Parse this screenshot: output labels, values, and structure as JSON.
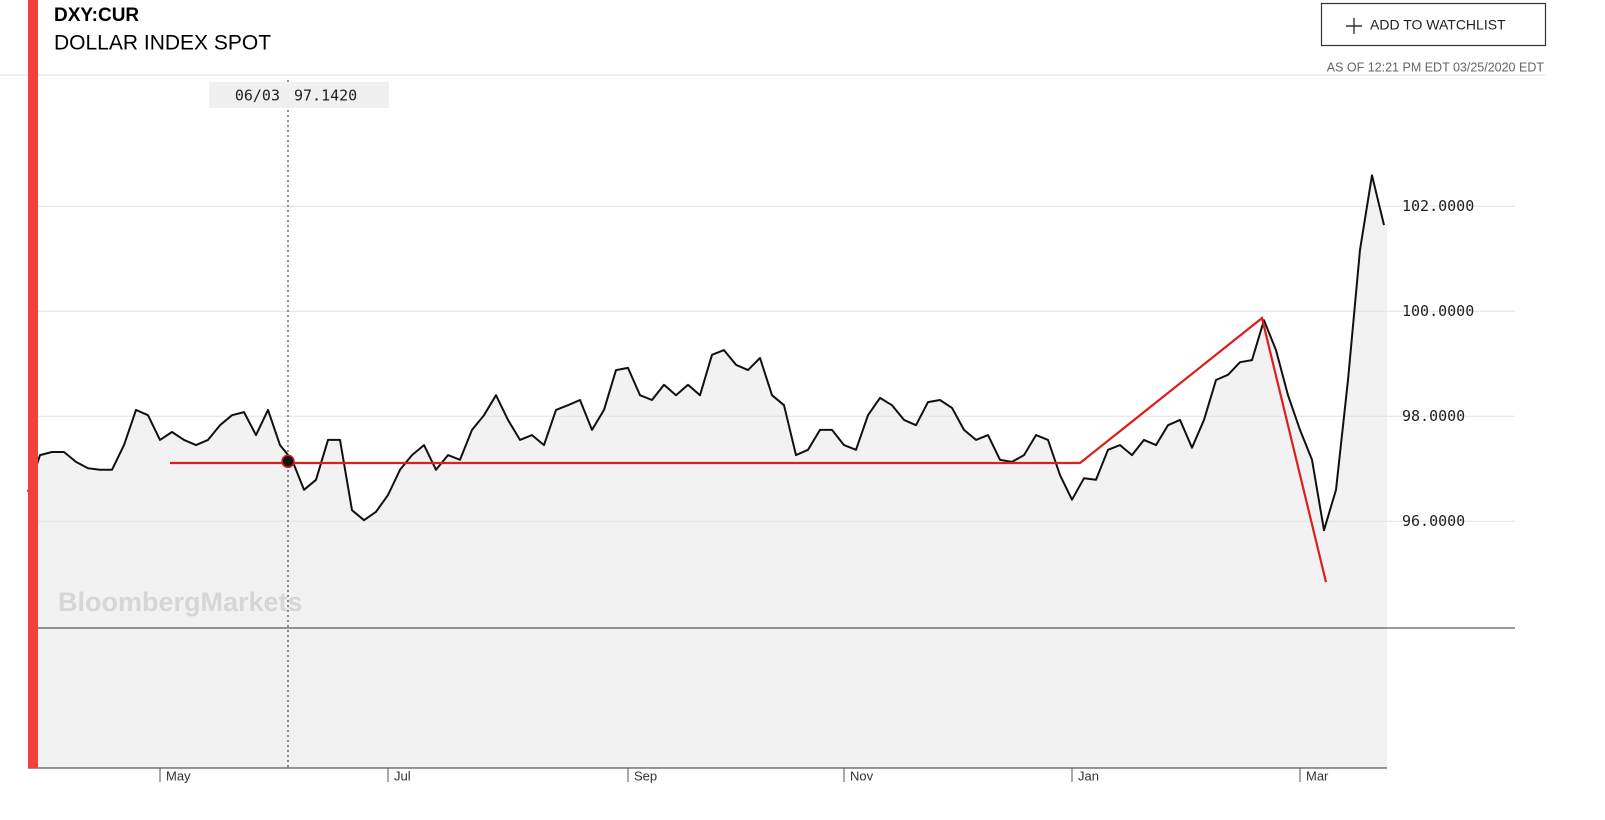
{
  "header": {
    "ticker": "DXY:CUR",
    "name": "DOLLAR INDEX SPOT",
    "button": "ADD TO WATCHLIST",
    "as_of": "AS OF 12:21 PM EDT 03/25/2020 EDT"
  },
  "chart_data": {
    "type": "line",
    "watermark": "BloombergMarkets",
    "color": "#111111",
    "area_color": "#f2f2f2",
    "categories": [
      null,
      null,
      null,
      null,
      null,
      null,
      null,
      null,
      null,
      null,
      null,
      "May",
      null,
      null,
      null,
      null,
      null,
      null,
      null,
      null,
      null,
      null,
      null,
      null,
      null,
      null,
      null,
      null,
      null,
      null,
      "Jul",
      null,
      null,
      null,
      null,
      null,
      null,
      null,
      null,
      null,
      null,
      null,
      null,
      null,
      null,
      null,
      null,
      null,
      null,
      null,
      "Sep",
      null,
      null,
      null,
      null,
      null,
      null,
      null,
      null,
      null,
      null,
      null,
      null,
      null,
      null,
      null,
      null,
      null,
      "Nov",
      null,
      null,
      null,
      null,
      null,
      null,
      null,
      null,
      null,
      null,
      null,
      null,
      null,
      null,
      null,
      null,
      null,
      null,
      "Jan",
      null,
      null,
      null,
      null,
      null,
      null,
      null,
      null,
      null,
      null,
      null,
      null,
      null,
      null,
      null,
      null,
      null,
      null,
      "Mar",
      null,
      null,
      null,
      null,
      null,
      null,
      null
    ],
    "values": [
      96.56,
      97.26,
      97.32,
      97.32,
      97.13,
      97.01,
      96.98,
      96.98,
      97.45,
      98.12,
      98.02,
      97.55,
      97.7,
      97.55,
      97.45,
      97.55,
      97.83,
      98.02,
      98.08,
      97.64,
      98.12,
      97.45,
      97.17,
      96.6,
      96.79,
      97.55,
      97.55,
      96.21,
      96.02,
      96.18,
      96.5,
      96.98,
      97.26,
      97.45,
      96.98,
      97.26,
      97.17,
      97.74,
      98.02,
      98.4,
      97.93,
      97.55,
      97.64,
      97.45,
      98.12,
      98.21,
      98.31,
      97.74,
      98.12,
      98.88,
      98.92,
      98.4,
      98.31,
      98.6,
      98.4,
      98.6,
      98.4,
      99.17,
      99.26,
      98.98,
      98.88,
      99.11,
      98.4,
      98.21,
      97.26,
      97.36,
      97.74,
      97.74,
      97.45,
      97.36,
      98.02,
      98.35,
      98.21,
      97.93,
      97.83,
      98.27,
      98.31,
      98.16,
      97.74,
      97.55,
      97.64,
      97.17,
      97.13,
      97.26,
      97.64,
      97.55,
      96.88,
      96.41,
      96.82,
      96.79,
      97.36,
      97.45,
      97.26,
      97.55,
      97.45,
      97.83,
      97.93,
      97.4,
      97.93,
      98.69,
      98.79,
      99.03,
      99.07,
      99.83,
      99.26,
      98.4,
      97.74,
      97.17,
      95.83,
      96.6,
      98.69,
      101.17,
      102.59,
      101.64
    ],
    "ylim": [
      91.3,
      104.5
    ],
    "yticks": [
      {
        "value": 96,
        "label": "96.0000"
      },
      {
        "value": 98,
        "label": "98.0000"
      },
      {
        "value": 100,
        "label": "100.0000"
      },
      {
        "value": 102,
        "label": "102.0000"
      }
    ],
    "grid": true,
    "tooltip": {
      "date": "06/03",
      "value": 97.142,
      "value_label": "97.1420"
    },
    "trend_lines": {
      "color": "#d9201c",
      "x": [
        11.83,
        87.67,
        102.83,
        108.17
      ],
      "values": [
        97.11,
        97.11,
        99.87,
        94.84
      ]
    }
  }
}
